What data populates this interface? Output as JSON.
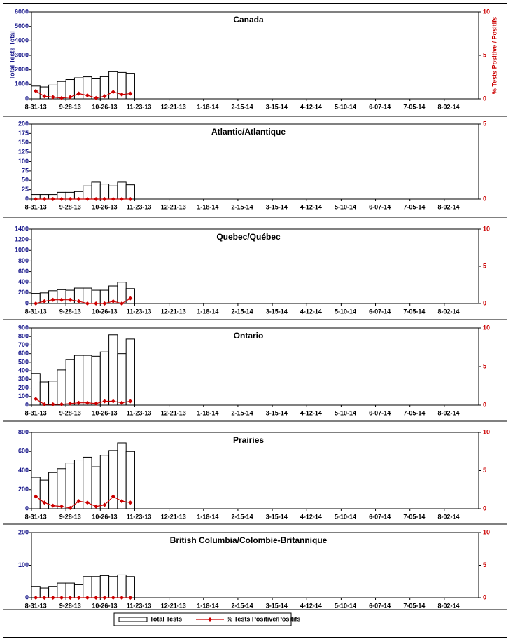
{
  "chart_data": [
    {
      "type": "bar",
      "title": "Canada",
      "y_label": "Total Tests Total",
      "y2_label": "% Tests Positive / Positifs",
      "categories": [
        "8-31-13",
        null,
        null,
        null,
        "9-28-13",
        null,
        null,
        null,
        "10-26-13",
        null,
        null,
        null,
        "11-23-13",
        null,
        null,
        null,
        "12-21-13",
        null,
        null,
        null,
        "1-18-14",
        null,
        null,
        null,
        "2-15-14",
        null,
        null,
        null,
        "3-15-14",
        null,
        null,
        null,
        "4-12-14",
        null,
        null,
        null,
        "5-10-14",
        null,
        null,
        null,
        "6-07-14",
        null,
        null,
        null,
        "7-05-14",
        null,
        null,
        null,
        "8-02-14",
        null,
        null,
        null
      ],
      "ylim": [
        0,
        6000
      ],
      "yticks": [
        0,
        1000,
        2000,
        3000,
        4000,
        5000,
        6000
      ],
      "y2lim": [
        0,
        10
      ],
      "y2ticks": [
        0,
        5,
        10
      ],
      "series": [
        {
          "name": "Total Tests",
          "color": "#ffffff",
          "values": [
            880,
            820,
            950,
            1200,
            1330,
            1450,
            1520,
            1380,
            1530,
            1870,
            1820,
            1760,
            null,
            null,
            null,
            null,
            null,
            null,
            null,
            null,
            null,
            null,
            null,
            null,
            null,
            null,
            null,
            null,
            null,
            null,
            null,
            null,
            null,
            null,
            null,
            null,
            null,
            null,
            null,
            null,
            null,
            null,
            null,
            null,
            null,
            null,
            null,
            null,
            null,
            null,
            null,
            null
          ]
        },
        {
          "name": "% Tests Positive/Positifs",
          "color": "#cc0000",
          "axis": "y2",
          "values": [
            0.9,
            0.3,
            0.2,
            0.1,
            0.2,
            0.6,
            0.4,
            0.1,
            0.3,
            0.8,
            0.5,
            0.6,
            null,
            null,
            null,
            null,
            null,
            null,
            null,
            null,
            null,
            null,
            null,
            null,
            null,
            null,
            null,
            null,
            null,
            null,
            null,
            null,
            null,
            null,
            null,
            null,
            null,
            null,
            null,
            null,
            null,
            null,
            null,
            null,
            null,
            null,
            null,
            null,
            null,
            null,
            null,
            null
          ]
        }
      ]
    },
    {
      "type": "bar",
      "title": "Atlantic/Atlantique",
      "categories": [
        "8-31-13",
        null,
        null,
        null,
        "9-28-13",
        null,
        null,
        null,
        "10-26-13",
        null,
        null,
        null,
        "11-23-13",
        null,
        null,
        null,
        "12-21-13",
        null,
        null,
        null,
        "1-18-14",
        null,
        null,
        null,
        "2-15-14",
        null,
        null,
        null,
        "3-15-14",
        null,
        null,
        null,
        "4-12-14",
        null,
        null,
        null,
        "5-10-14",
        null,
        null,
        null,
        "6-07-14",
        null,
        null,
        null,
        "7-05-14",
        null,
        null,
        null,
        "8-02-14",
        null,
        null,
        null
      ],
      "ylim": [
        0,
        200
      ],
      "yticks": [
        0,
        25,
        50,
        75,
        100,
        125,
        150,
        175,
        200
      ],
      "y2lim": [
        0,
        5
      ],
      "y2ticks": [
        0,
        5
      ],
      "series": [
        {
          "name": "Total Tests",
          "color": "#ffffff",
          "values": [
            12,
            12,
            12,
            18,
            18,
            20,
            35,
            45,
            40,
            35,
            45,
            38,
            null,
            null,
            null,
            null,
            null,
            null,
            null,
            null,
            null,
            null,
            null,
            null,
            null,
            null,
            null,
            null,
            null,
            null,
            null,
            null,
            null,
            null,
            null,
            null,
            null,
            null,
            null,
            null,
            null,
            null,
            null,
            null,
            null,
            null,
            null,
            null,
            null,
            null,
            null,
            null
          ]
        },
        {
          "name": "% Tests Positive/Positifs",
          "color": "#cc0000",
          "axis": "y2",
          "values": [
            0,
            0,
            0,
            0,
            0,
            0,
            0,
            0,
            0,
            0,
            0,
            0,
            null,
            null,
            null,
            null,
            null,
            null,
            null,
            null,
            null,
            null,
            null,
            null,
            null,
            null,
            null,
            null,
            null,
            null,
            null,
            null,
            null,
            null,
            null,
            null,
            null,
            null,
            null,
            null,
            null,
            null,
            null,
            null,
            null,
            null,
            null,
            null,
            null,
            null,
            null,
            null
          ]
        }
      ]
    },
    {
      "type": "bar",
      "title": "Quebec/Québec",
      "categories": [
        "8-31-13",
        null,
        null,
        null,
        "9-28-13",
        null,
        null,
        null,
        "10-26-13",
        null,
        null,
        null,
        "11-23-13",
        null,
        null,
        null,
        "12-21-13",
        null,
        null,
        null,
        "1-18-14",
        null,
        null,
        null,
        "2-15-14",
        null,
        null,
        null,
        "3-15-14",
        null,
        null,
        null,
        "4-12-14",
        null,
        null,
        null,
        "5-10-14",
        null,
        null,
        null,
        "6-07-14",
        null,
        null,
        null,
        "7-05-14",
        null,
        null,
        null,
        "8-02-14",
        null,
        null,
        null
      ],
      "ylim": [
        0,
        1400
      ],
      "yticks": [
        0,
        200,
        400,
        600,
        800,
        1000,
        1200,
        1400
      ],
      "y2lim": [
        0,
        10
      ],
      "y2ticks": [
        0,
        5,
        10
      ],
      "series": [
        {
          "name": "Total Tests",
          "color": "#ffffff",
          "values": [
            190,
            200,
            240,
            260,
            250,
            290,
            290,
            250,
            250,
            330,
            400,
            280,
            null,
            null,
            null,
            null,
            null,
            null,
            null,
            null,
            null,
            null,
            null,
            null,
            null,
            null,
            null,
            null,
            null,
            null,
            null,
            null,
            null,
            null,
            null,
            null,
            null,
            null,
            null,
            null,
            null,
            null,
            null,
            null,
            null,
            null,
            null,
            null,
            null,
            null,
            null,
            null
          ]
        },
        {
          "name": "% Tests Positive/Positifs",
          "color": "#cc0000",
          "axis": "y2",
          "values": [
            0,
            0.3,
            0.5,
            0.5,
            0.5,
            0.3,
            0,
            0,
            0,
            0.3,
            0,
            0.7,
            null,
            null,
            null,
            null,
            null,
            null,
            null,
            null,
            null,
            null,
            null,
            null,
            null,
            null,
            null,
            null,
            null,
            null,
            null,
            null,
            null,
            null,
            null,
            null,
            null,
            null,
            null,
            null,
            null,
            null,
            null,
            null,
            null,
            null,
            null,
            null,
            null,
            null,
            null,
            null
          ]
        }
      ]
    },
    {
      "type": "bar",
      "title": "Ontario",
      "categories": [
        "8-31-13",
        null,
        null,
        null,
        "9-28-13",
        null,
        null,
        null,
        "10-26-13",
        null,
        null,
        null,
        "11-23-13",
        null,
        null,
        null,
        "12-21-13",
        null,
        null,
        null,
        "1-18-14",
        null,
        null,
        null,
        "2-15-14",
        null,
        null,
        null,
        "3-15-14",
        null,
        null,
        null,
        "4-12-14",
        null,
        null,
        null,
        "5-10-14",
        null,
        null,
        null,
        "6-07-14",
        null,
        null,
        null,
        "7-05-14",
        null,
        null,
        null,
        "8-02-14",
        null,
        null,
        null
      ],
      "ylim": [
        0,
        900
      ],
      "yticks": [
        0,
        100,
        200,
        300,
        400,
        500,
        600,
        700,
        800,
        900
      ],
      "y2lim": [
        0,
        10
      ],
      "y2ticks": [
        0,
        5,
        10
      ],
      "series": [
        {
          "name": "Total Tests",
          "color": "#ffffff",
          "values": [
            370,
            270,
            280,
            410,
            530,
            580,
            580,
            570,
            620,
            820,
            600,
            770,
            null,
            null,
            null,
            null,
            null,
            null,
            null,
            null,
            null,
            null,
            null,
            null,
            null,
            null,
            null,
            null,
            null,
            null,
            null,
            null,
            null,
            null,
            null,
            null,
            null,
            null,
            null,
            null,
            null,
            null,
            null,
            null,
            null,
            null,
            null,
            null,
            null,
            null,
            null,
            null
          ]
        },
        {
          "name": "% Tests Positive/Positifs",
          "color": "#cc0000",
          "axis": "y2",
          "values": [
            0.8,
            0.1,
            0.1,
            0.1,
            0.2,
            0.3,
            0.3,
            0.2,
            0.5,
            0.5,
            0.3,
            0.5,
            null,
            null,
            null,
            null,
            null,
            null,
            null,
            null,
            null,
            null,
            null,
            null,
            null,
            null,
            null,
            null,
            null,
            null,
            null,
            null,
            null,
            null,
            null,
            null,
            null,
            null,
            null,
            null,
            null,
            null,
            null,
            null,
            null,
            null,
            null,
            null,
            null,
            null,
            null,
            null
          ]
        }
      ]
    },
    {
      "type": "bar",
      "title": "Prairies",
      "categories": [
        "8-31-13",
        null,
        null,
        null,
        "9-28-13",
        null,
        null,
        null,
        "10-26-13",
        null,
        null,
        null,
        "11-23-13",
        null,
        null,
        null,
        "12-21-13",
        null,
        null,
        null,
        "1-18-14",
        null,
        null,
        null,
        "2-15-14",
        null,
        null,
        null,
        "3-15-14",
        null,
        null,
        null,
        "4-12-14",
        null,
        null,
        null,
        "5-10-14",
        null,
        null,
        null,
        "6-07-14",
        null,
        null,
        null,
        "7-05-14",
        null,
        null,
        null,
        "8-02-14",
        null,
        null,
        null
      ],
      "ylim": [
        0,
        800
      ],
      "yticks": [
        0,
        200,
        400,
        600,
        800
      ],
      "y2lim": [
        0,
        10
      ],
      "y2ticks": [
        0,
        5,
        10
      ],
      "series": [
        {
          "name": "Total Tests",
          "color": "#ffffff",
          "values": [
            330,
            300,
            380,
            420,
            480,
            510,
            540,
            440,
            560,
            610,
            690,
            600,
            null,
            null,
            null,
            null,
            null,
            null,
            null,
            null,
            null,
            null,
            null,
            null,
            null,
            null,
            null,
            null,
            null,
            null,
            null,
            null,
            null,
            null,
            null,
            null,
            null,
            null,
            null,
            null,
            null,
            null,
            null,
            null,
            null,
            null,
            null,
            null,
            null,
            null,
            null,
            null
          ]
        },
        {
          "name": "% Tests Positive/Positifs",
          "color": "#cc0000",
          "axis": "y2",
          "values": [
            1.6,
            0.8,
            0.4,
            0.3,
            0.1,
            1.0,
            0.8,
            0.3,
            0.5,
            1.6,
            1.0,
            0.8,
            null,
            null,
            null,
            null,
            null,
            null,
            null,
            null,
            null,
            null,
            null,
            null,
            null,
            null,
            null,
            null,
            null,
            null,
            null,
            null,
            null,
            null,
            null,
            null,
            null,
            null,
            null,
            null,
            null,
            null,
            null,
            null,
            null,
            null,
            null,
            null,
            null,
            null,
            null,
            null
          ]
        }
      ]
    },
    {
      "type": "bar",
      "title": "British Columbia/Colombie-Britannique",
      "categories": [
        "8-31-13",
        null,
        null,
        null,
        "9-28-13",
        null,
        null,
        null,
        "10-26-13",
        null,
        null,
        null,
        "11-23-13",
        null,
        null,
        null,
        "12-21-13",
        null,
        null,
        null,
        "1-18-14",
        null,
        null,
        null,
        "2-15-14",
        null,
        null,
        null,
        "3-15-14",
        null,
        null,
        null,
        "4-12-14",
        null,
        null,
        null,
        "5-10-14",
        null,
        null,
        null,
        "6-07-14",
        null,
        null,
        null,
        "7-05-14",
        null,
        null,
        null,
        "8-02-14",
        null,
        null,
        null
      ],
      "ylim": [
        0,
        200
      ],
      "yticks": [
        0,
        100,
        200
      ],
      "y2lim": [
        0,
        10
      ],
      "y2ticks": [
        0,
        5,
        10
      ],
      "series": [
        {
          "name": "Total Tests",
          "color": "#ffffff",
          "values": [
            35,
            30,
            35,
            45,
            45,
            40,
            65,
            65,
            68,
            65,
            70,
            65,
            null,
            null,
            null,
            null,
            null,
            null,
            null,
            null,
            null,
            null,
            null,
            null,
            null,
            null,
            null,
            null,
            null,
            null,
            null,
            null,
            null,
            null,
            null,
            null,
            null,
            null,
            null,
            null,
            null,
            null,
            null,
            null,
            null,
            null,
            null,
            null,
            null,
            null,
            null,
            null
          ]
        },
        {
          "name": "% Tests Positive/Positifs",
          "color": "#cc0000",
          "axis": "y2",
          "values": [
            0,
            0,
            0,
            0,
            0,
            0,
            0,
            0,
            0,
            0,
            0,
            0,
            null,
            null,
            null,
            null,
            null,
            null,
            null,
            null,
            null,
            null,
            null,
            null,
            null,
            null,
            null,
            null,
            null,
            null,
            null,
            null,
            null,
            null,
            null,
            null,
            null,
            null,
            null,
            null,
            null,
            null,
            null,
            null,
            null,
            null,
            null,
            null,
            null,
            null,
            null,
            null
          ]
        }
      ]
    }
  ]
}
